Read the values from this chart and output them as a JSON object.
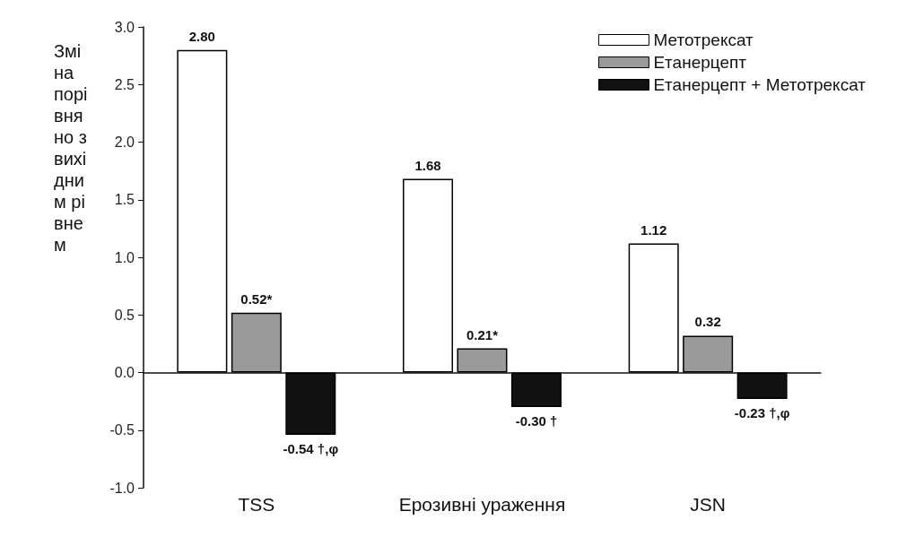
{
  "chart_data": {
    "type": "bar",
    "ylabel": "Зміна порівняно з вихідним рівнем",
    "categories": [
      "TSS",
      "Ерозивні ураження",
      "JSN"
    ],
    "series": [
      {
        "name": "Метотрексат",
        "color": "#ffffff",
        "values": [
          2.8,
          1.68,
          1.12
        ],
        "value_labels": [
          "2.80",
          "1.68",
          "1.12"
        ]
      },
      {
        "name": "Етанерцепт",
        "color": "#9a9a9a",
        "values": [
          0.52,
          0.21,
          0.32
        ],
        "value_labels": [
          "0.52*",
          "0.21*",
          "0.32"
        ]
      },
      {
        "name": "Етанерцепт + Метотрексат",
        "color": "#111111",
        "values": [
          -0.54,
          -0.3,
          -0.23
        ],
        "value_labels": [
          "-0.54 †,φ",
          "-0.30 †",
          "-0.23 †,φ"
        ]
      }
    ],
    "ylim": [
      -1.0,
      3.0
    ],
    "yticks": [
      {
        "value": -1,
        "label": "-1.0"
      },
      {
        "value": -0.5,
        "label": "-0.5"
      },
      {
        "value": 0,
        "label": "0.0"
      },
      {
        "value": 0.5,
        "label": "0.5"
      },
      {
        "value": 1,
        "label": "1.0"
      },
      {
        "value": 1.5,
        "label": "1.5"
      },
      {
        "value": 2,
        "label": "2.0"
      },
      {
        "value": 2.5,
        "label": "2.5"
      },
      {
        "value": 3,
        "label": "3.0"
      }
    ],
    "legend": "top right"
  }
}
